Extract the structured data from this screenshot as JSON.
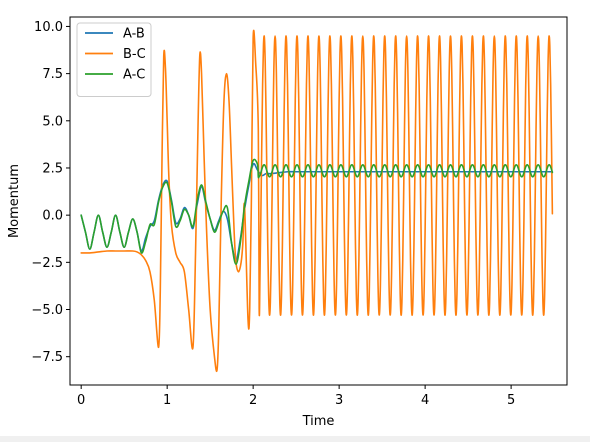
{
  "chart_data": {
    "type": "line",
    "xlabel": "Time",
    "ylabel": "Momentum",
    "xlim": [
      -0.13,
      5.65
    ],
    "ylim": [
      -9.0,
      10.5
    ],
    "xticks": [
      0,
      1,
      2,
      3,
      4,
      5
    ],
    "xtick_labels": [
      "0",
      "1",
      "2",
      "3",
      "4",
      "5"
    ],
    "yticks": [
      -7.5,
      -5.0,
      -2.5,
      0.0,
      2.5,
      5.0,
      7.5,
      10.0
    ],
    "ytick_labels": [
      "−7.5",
      "−5.0",
      "−2.5",
      "0.0",
      "2.5",
      "5.0",
      "7.5",
      "10.0"
    ],
    "grid": false,
    "legend_position": "upper-left",
    "series": [
      {
        "name": "A-B",
        "color": "#1f77b4",
        "x": [
          0.0,
          0.05,
          0.1,
          0.15,
          0.2,
          0.25,
          0.3,
          0.35,
          0.4,
          0.45,
          0.5,
          0.55,
          0.6,
          0.65,
          0.7,
          0.75,
          0.8,
          0.85,
          0.9,
          0.95,
          1.0,
          1.05,
          1.1,
          1.15,
          1.2,
          1.25,
          1.3,
          1.35,
          1.4,
          1.45,
          1.5,
          1.55,
          1.6,
          1.65,
          1.7,
          1.75,
          1.8,
          1.85,
          1.9,
          1.95,
          2.0,
          2.05,
          2.1,
          2.15,
          2.2,
          2.3,
          2.4,
          2.5,
          2.6,
          2.8,
          3.0,
          3.2,
          3.4,
          3.6,
          3.8,
          4.0,
          4.2,
          4.4,
          4.6,
          4.8,
          5.0,
          5.2,
          5.4,
          5.48
        ],
        "y": [
          0.0,
          -0.9,
          -1.8,
          -0.9,
          0.0,
          -0.9,
          -1.7,
          -0.9,
          0.0,
          -0.9,
          -1.7,
          -0.9,
          -0.2,
          -0.9,
          -1.9,
          -1.2,
          -0.6,
          -0.3,
          0.8,
          1.6,
          1.8,
          0.8,
          -0.4,
          -0.2,
          0.4,
          0.0,
          -0.7,
          0.6,
          1.5,
          0.6,
          -0.2,
          -0.8,
          -0.3,
          0.2,
          -0.2,
          -1.5,
          -2.4,
          -1.3,
          0.3,
          1.6,
          2.7,
          2.4,
          2.1,
          2.2,
          2.2,
          2.25,
          2.3,
          2.3,
          2.3,
          2.3,
          2.3,
          2.3,
          2.3,
          2.3,
          2.3,
          2.3,
          2.3,
          2.3,
          2.3,
          2.3,
          2.3,
          2.3,
          2.3,
          2.3
        ]
      },
      {
        "name": "B-C",
        "color": "#ff7f0e",
        "x": [
          0.0,
          0.1,
          0.2,
          0.3,
          0.4,
          0.5,
          0.6,
          0.65,
          0.7,
          0.75,
          0.8,
          0.85,
          0.9,
          0.92,
          0.94,
          0.96,
          0.98,
          1.0,
          1.02,
          1.05,
          1.1,
          1.15,
          1.2,
          1.25,
          1.3,
          1.33,
          1.36,
          1.38,
          1.4,
          1.43,
          1.46,
          1.5,
          1.55,
          1.58,
          1.6,
          1.63,
          1.66,
          1.69,
          1.72,
          1.75,
          1.78,
          1.8,
          1.83,
          1.86,
          1.88,
          1.9,
          1.94,
          1.96,
          1.98,
          2.0,
          2.03,
          2.06
        ],
        "y": [
          -2.0,
          -2.0,
          -1.95,
          -1.9,
          -1.9,
          -1.9,
          -1.9,
          -1.95,
          -2.1,
          -2.4,
          -3.0,
          -4.5,
          -7.0,
          -4.0,
          3.0,
          8.4,
          7.8,
          5.0,
          2.0,
          -0.5,
          -2.0,
          -2.5,
          -3.0,
          -5.0,
          -7.0,
          -2.0,
          5.0,
          8.5,
          7.5,
          3.0,
          -1.0,
          -5.0,
          -7.5,
          -8.2,
          -6.0,
          1.0,
          6.0,
          7.5,
          6.0,
          2.5,
          -1.0,
          -2.5,
          -3.0,
          -2.5,
          -1.5,
          0.5,
          -5.5,
          -5.0,
          1.0,
          9.4,
          8.0,
          4.5
        ]
      },
      {
        "name": "A-C",
        "color": "#2ca02c",
        "x": [
          0.0,
          0.05,
          0.1,
          0.15,
          0.2,
          0.25,
          0.3,
          0.35,
          0.4,
          0.45,
          0.5,
          0.55,
          0.6,
          0.65,
          0.7,
          0.75,
          0.8,
          0.85,
          0.9,
          0.95,
          1.0,
          1.05,
          1.1,
          1.15,
          1.2,
          1.25,
          1.3,
          1.35,
          1.4,
          1.45,
          1.5,
          1.55,
          1.6,
          1.65,
          1.7,
          1.75,
          1.8,
          1.85,
          1.9,
          1.95,
          2.0,
          2.05
        ],
        "y": [
          0.0,
          -0.9,
          -1.8,
          -0.9,
          0.0,
          -0.9,
          -1.7,
          -0.9,
          0.0,
          -0.9,
          -1.7,
          -0.9,
          -0.2,
          -0.9,
          -2.0,
          -1.4,
          -0.5,
          -0.5,
          0.7,
          1.5,
          1.7,
          0.7,
          -0.6,
          -0.3,
          0.3,
          0.0,
          -0.6,
          0.8,
          1.6,
          0.7,
          -0.2,
          -0.9,
          -0.4,
          0.2,
          0.4,
          -1.5,
          -2.6,
          -1.5,
          0.5,
          1.8,
          2.9,
          2.7
        ]
      }
    ]
  }
}
